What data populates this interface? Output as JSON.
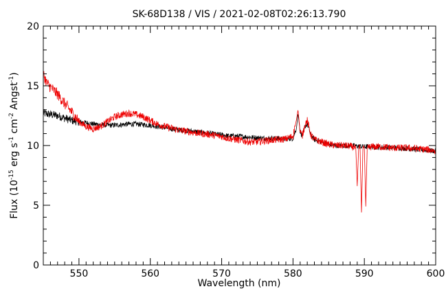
{
  "chart_data": {
    "type": "line",
    "title": "SK-68D138 / VIS / 2021-02-08T02:26:13.790",
    "xlabel": "Wavelength (nm)",
    "ylabel": {
      "prefix": "Flux (10",
      "exp1": "-15",
      "mid1": " erg s",
      "exp2": "-1",
      "mid2": " cm",
      "exp3": "-2",
      "mid3": " Angst",
      "exp4": "-1",
      "suffix": ")"
    },
    "xlim": [
      545,
      600
    ],
    "ylim": [
      0,
      20
    ],
    "xticks": [
      550,
      560,
      570,
      580,
      590,
      600
    ],
    "xtick_labels": [
      "550",
      "560",
      "570",
      "580",
      "590",
      "600"
    ],
    "yticks": [
      0,
      5,
      10,
      15,
      20
    ],
    "ytick_labels": [
      "0",
      "5",
      "10",
      "15",
      "20"
    ],
    "grid": false,
    "legend": "none",
    "series": [
      {
        "color": "#000000",
        "x": [
          545,
          546,
          547,
          548,
          549,
          550,
          551,
          552,
          553,
          554,
          555,
          556,
          557,
          558,
          559,
          560,
          561,
          562,
          563,
          564,
          565,
          566,
          567,
          568,
          569,
          570,
          571,
          572,
          573,
          574,
          575,
          576,
          577,
          578,
          579,
          580,
          580.5,
          580.7,
          581,
          581.3,
          581.7,
          582,
          582.5,
          583,
          584,
          585,
          586,
          587,
          588,
          589,
          590,
          591,
          592,
          593,
          594,
          595,
          596,
          597,
          598,
          599,
          600
        ],
        "y": [
          12.7,
          12.6,
          12.5,
          12.3,
          12.1,
          12.0,
          11.9,
          11.8,
          11.75,
          11.7,
          11.7,
          11.75,
          11.8,
          11.8,
          11.75,
          11.7,
          11.6,
          11.5,
          11.4,
          11.3,
          11.25,
          11.2,
          11.1,
          11.05,
          10.95,
          10.9,
          10.8,
          10.8,
          10.75,
          10.7,
          10.65,
          10.6,
          10.6,
          10.6,
          10.55,
          10.6,
          11.5,
          12.7,
          11.2,
          10.8,
          11.6,
          11.8,
          10.9,
          10.5,
          10.3,
          10.1,
          10.0,
          10.0,
          10.0,
          9.95,
          9.9,
          9.9,
          9.85,
          9.85,
          9.8,
          9.8,
          9.75,
          9.7,
          9.65,
          9.6,
          9.55
        ],
        "noise": 0.22
      },
      {
        "color": "#ee0000",
        "x": [
          545,
          545.5,
          546,
          547,
          548,
          549,
          550,
          551,
          552,
          553,
          554,
          555,
          556,
          557,
          558,
          559,
          560,
          561,
          562,
          563,
          564,
          565,
          566,
          567,
          568,
          569,
          570,
          571,
          572,
          573,
          574,
          575,
          576,
          577,
          578,
          579,
          580,
          580.5,
          580.7,
          581,
          581.3,
          581.7,
          582,
          582.5,
          583,
          584,
          585,
          586,
          587,
          588,
          588.8,
          589.0,
          589.2,
          589.4,
          589.6,
          589.8,
          590.0,
          590.2,
          590.4,
          590.7,
          591,
          592,
          593,
          594,
          595,
          596,
          597,
          598,
          599,
          600
        ],
        "y": [
          16.0,
          15.2,
          14.9,
          14.3,
          13.5,
          12.8,
          12.0,
          11.6,
          11.4,
          11.6,
          12.0,
          12.4,
          12.6,
          12.7,
          12.6,
          12.4,
          12.1,
          11.8,
          11.6,
          11.45,
          11.3,
          11.2,
          11.1,
          11.0,
          10.95,
          10.85,
          10.75,
          10.6,
          10.5,
          10.4,
          10.3,
          10.3,
          10.4,
          10.45,
          10.5,
          10.55,
          10.8,
          12.2,
          13.0,
          11.2,
          10.8,
          11.8,
          12.1,
          10.9,
          10.5,
          10.3,
          10.1,
          10.0,
          10.0,
          9.95,
          9.8,
          6.6,
          9.8,
          9.8,
          4.4,
          9.8,
          9.8,
          4.9,
          9.8,
          9.85,
          9.9,
          9.9,
          9.85,
          9.8,
          9.8,
          9.8,
          9.75,
          9.7,
          9.65,
          9.55
        ],
        "noise": 0.3
      }
    ]
  }
}
